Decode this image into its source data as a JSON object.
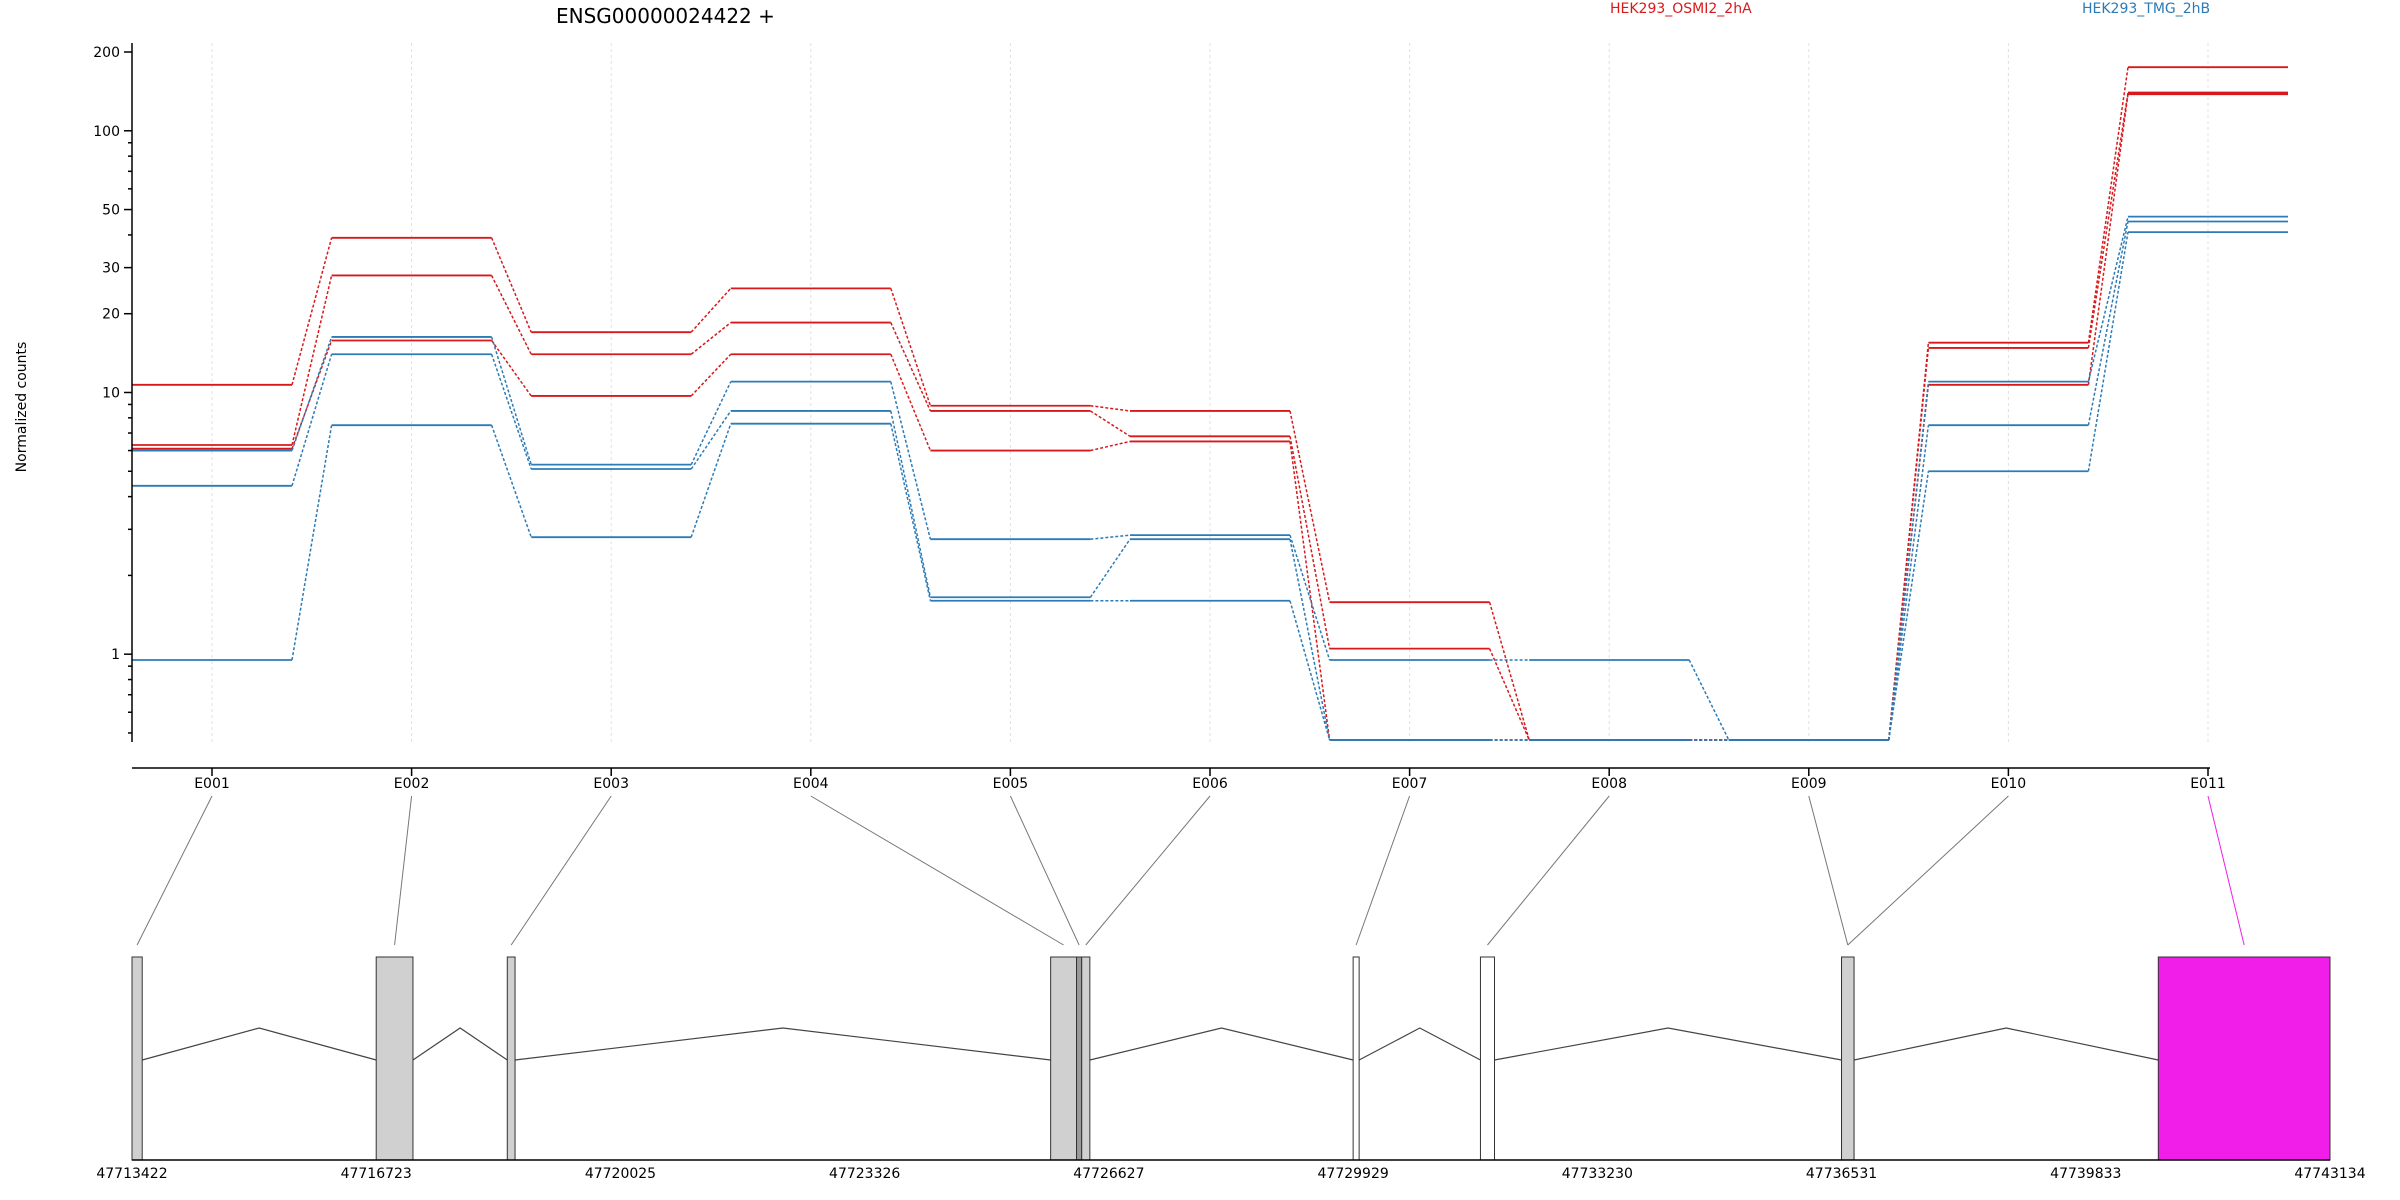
{
  "chart_data": {
    "type": "line",
    "title": "ENSG00000024422 +",
    "ylabel": "Normalized counts",
    "xlabel": "",
    "y_scale": "log",
    "ylim": [
      0.44,
      220
    ],
    "y_ticks": [
      {
        "value": 200,
        "label": "200"
      },
      {
        "value": 100,
        "label": "100"
      },
      {
        "value": 50,
        "label": "50"
      },
      {
        "value": 30,
        "label": "30"
      },
      {
        "value": 20,
        "label": "20"
      },
      {
        "value": 10,
        "label": "10"
      },
      {
        "value": 1,
        "label": "1"
      }
    ],
    "categories": [
      "E001",
      "E002",
      "E003",
      "E004",
      "E005",
      "E006",
      "E007",
      "E008",
      "E009",
      "E010",
      "E011"
    ],
    "grid": true,
    "legend_placement": "top",
    "legend": [
      {
        "label": "HEK293_OSMI2_2hA",
        "color": "#d7191c"
      },
      {
        "label": "HEK293_TMG_2hB",
        "color": "#2c7bb6"
      }
    ],
    "series": [
      {
        "group": "HEK293_OSMI2_2hA",
        "color": "#d7191c",
        "values": [
          10.7,
          39,
          17,
          25,
          8.9,
          8.5,
          1.58,
          0.47,
          0.47,
          15.5,
          175
        ]
      },
      {
        "group": "HEK293_OSMI2_2hA",
        "color": "#d7191c",
        "values": [
          6.3,
          28,
          14,
          18.5,
          8.5,
          6.8,
          1.05,
          0.47,
          0.47,
          14.8,
          140
        ]
      },
      {
        "group": "HEK293_OSMI2_2hA",
        "color": "#d7191c",
        "values": [
          6.1,
          15.8,
          9.7,
          14,
          6.0,
          6.5,
          0.47,
          0.47,
          0.47,
          10.7,
          138
        ]
      },
      {
        "group": "HEK293_TMG_2hB",
        "color": "#2c7bb6",
        "values": [
          6.0,
          16.3,
          5.3,
          11,
          2.75,
          2.85,
          0.95,
          0.95,
          0.47,
          11.0,
          47
        ]
      },
      {
        "group": "HEK293_TMG_2hB",
        "color": "#2c7bb6",
        "values": [
          4.4,
          14,
          5.1,
          8.5,
          1.65,
          2.75,
          0.47,
          0.47,
          0.47,
          7.5,
          45
        ]
      },
      {
        "group": "HEK293_TMG_2hB",
        "color": "#2c7bb6",
        "values": [
          0.95,
          7.5,
          2.8,
          7.6,
          1.6,
          1.6,
          0.47,
          0.47,
          0.47,
          5.0,
          41
        ]
      }
    ],
    "gene_model": {
      "coordinate_labels": [
        "47713422",
        "47716723",
        "47720025",
        "47723326",
        "47726627",
        "47729929",
        "47733230",
        "47736531",
        "47739833",
        "47743134"
      ],
      "coordinate_values": [
        47713422,
        47716723,
        47720025,
        47723326,
        47726627,
        47729929,
        47733230,
        47736531,
        47739833,
        47743134
      ],
      "exons": [
        {
          "id": "E001",
          "start": 47713422,
          "end": 47713560,
          "fill": "#d0d0d0"
        },
        {
          "id": "E002",
          "start": 47716723,
          "end": 47717220,
          "fill": "#d0d0d0"
        },
        {
          "id": "E003",
          "start": 47718495,
          "end": 47718600,
          "fill": "#d0d0d0"
        },
        {
          "id": "E004",
          "start": 47725840,
          "end": 47726190,
          "fill": "#d0d0d0"
        },
        {
          "id": "E005",
          "start": 47726190,
          "end": 47726260,
          "fill": "#9a9a9a"
        },
        {
          "id": "E006",
          "start": 47726260,
          "end": 47726370,
          "fill": "#d0d0d0"
        },
        {
          "id": "E007",
          "start": 47729929,
          "end": 47730010,
          "fill": "#ffffff"
        },
        {
          "id": "E008",
          "start": 47731650,
          "end": 47731840,
          "fill": "#ffffff"
        },
        {
          "id": "E009",
          "start": 47736531,
          "end": 47736700,
          "fill": "#d0d0d0"
        },
        {
          "id": "E010",
          "start": 47736531,
          "end": 47736700,
          "fill": "#d0d0d0"
        },
        {
          "id": "E011",
          "start": 47740813,
          "end": 47743134,
          "fill": "#f01ee8"
        }
      ],
      "connector_targets": [
        "E001",
        "E002",
        "E003",
        "E004",
        "E005",
        "E006",
        "E007",
        "E008",
        "E009",
        "E010",
        "E011"
      ],
      "highlight_color": "#f01ee8"
    }
  }
}
